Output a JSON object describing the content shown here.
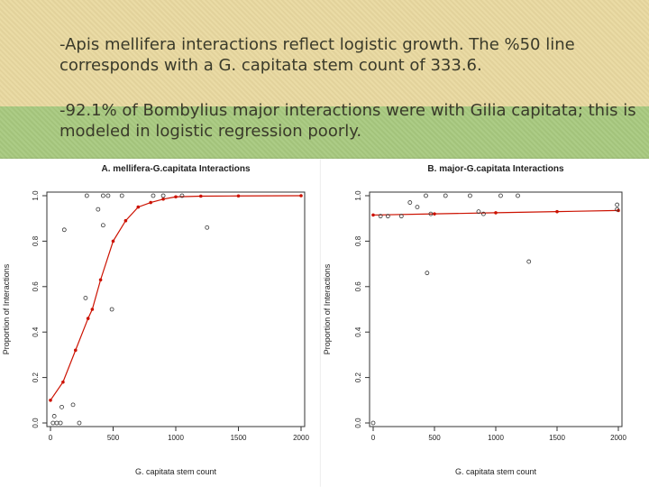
{
  "slide": {
    "bullet_1": "-Apis mellifera interactions reflect logistic growth. The %50 line corresponds with a G. capitata stem count of 333.6.",
    "bullet_2": "-92.1% of Bombylius major interactions were with Gilia capitata; this is modeled in logistic regression poorly."
  },
  "colors": {
    "points": "#333333",
    "fit": "#cc1100",
    "band": "#e9d9a0",
    "background": "#a8c97f"
  },
  "chart_data": [
    {
      "type": "scatter",
      "title": "A. mellifera-G.capitata Interactions",
      "xlabel": "G. capitata stem count",
      "ylabel": "Proportion of Interactions",
      "xlim": [
        0,
        2000
      ],
      "ylim": [
        0,
        1
      ],
      "xticks": [
        "0",
        "500",
        "1000",
        "1500",
        "2000"
      ],
      "yticks": [
        "0.0",
        "0.2",
        "0.4",
        "0.6",
        "0.8",
        "1.0"
      ],
      "grid": false,
      "points": [
        {
          "x": 20,
          "y": 0.0
        },
        {
          "x": 50,
          "y": 0.0
        },
        {
          "x": 80,
          "y": 0.0
        },
        {
          "x": 30,
          "y": 0.03
        },
        {
          "x": 90,
          "y": 0.07
        },
        {
          "x": 180,
          "y": 0.08
        },
        {
          "x": 230,
          "y": 0.0
        },
        {
          "x": 110,
          "y": 0.85
        },
        {
          "x": 280,
          "y": 0.55
        },
        {
          "x": 380,
          "y": 0.94
        },
        {
          "x": 490,
          "y": 0.5
        },
        {
          "x": 420,
          "y": 0.87
        },
        {
          "x": 290,
          "y": 1.0
        },
        {
          "x": 420,
          "y": 1.0
        },
        {
          "x": 460,
          "y": 1.0
        },
        {
          "x": 570,
          "y": 1.0
        },
        {
          "x": 820,
          "y": 1.0
        },
        {
          "x": 900,
          "y": 1.0
        },
        {
          "x": 1050,
          "y": 1.0
        },
        {
          "x": 1250,
          "y": 0.86
        }
      ],
      "fit": {
        "x": [
          0,
          100,
          200,
          300,
          333.6,
          400,
          500,
          600,
          700,
          800,
          900,
          1000,
          1200,
          1500,
          2000
        ],
        "y": [
          0.1,
          0.18,
          0.32,
          0.46,
          0.5,
          0.63,
          0.8,
          0.89,
          0.95,
          0.97,
          0.985,
          0.995,
          0.998,
          0.999,
          1.0
        ]
      }
    },
    {
      "type": "scatter",
      "title": "B. major-G.capitata Interactions",
      "xlabel": "G. capitata stem count",
      "ylabel": "Proportion of Interactions",
      "xlim": [
        0,
        2000
      ],
      "ylim": [
        0,
        1
      ],
      "xticks": [
        "0",
        "500",
        "1000",
        "1500",
        "2000"
      ],
      "yticks": [
        "0.0",
        "0.2",
        "0.4",
        "0.6",
        "0.8",
        "1.0"
      ],
      "grid": false,
      "points": [
        {
          "x": 0,
          "y": 0.0
        },
        {
          "x": 440,
          "y": 0.66
        },
        {
          "x": 1270,
          "y": 0.71
        },
        {
          "x": 430,
          "y": 1.0
        },
        {
          "x": 590,
          "y": 1.0
        },
        {
          "x": 790,
          "y": 1.0
        },
        {
          "x": 1040,
          "y": 1.0
        },
        {
          "x": 1180,
          "y": 1.0
        },
        {
          "x": 1990,
          "y": 0.96
        },
        {
          "x": 360,
          "y": 0.95
        },
        {
          "x": 900,
          "y": 0.92
        },
        {
          "x": 860,
          "y": 0.93
        },
        {
          "x": 300,
          "y": 0.97
        },
        {
          "x": 60,
          "y": 0.91
        },
        {
          "x": 120,
          "y": 0.91
        },
        {
          "x": 230,
          "y": 0.91
        },
        {
          "x": 470,
          "y": 0.92
        },
        {
          "x": 1990,
          "y": 0.94
        }
      ],
      "fit": {
        "x": [
          0,
          500,
          1000,
          1500,
          2000
        ],
        "y": [
          0.915,
          0.92,
          0.925,
          0.93,
          0.935
        ]
      }
    }
  ]
}
